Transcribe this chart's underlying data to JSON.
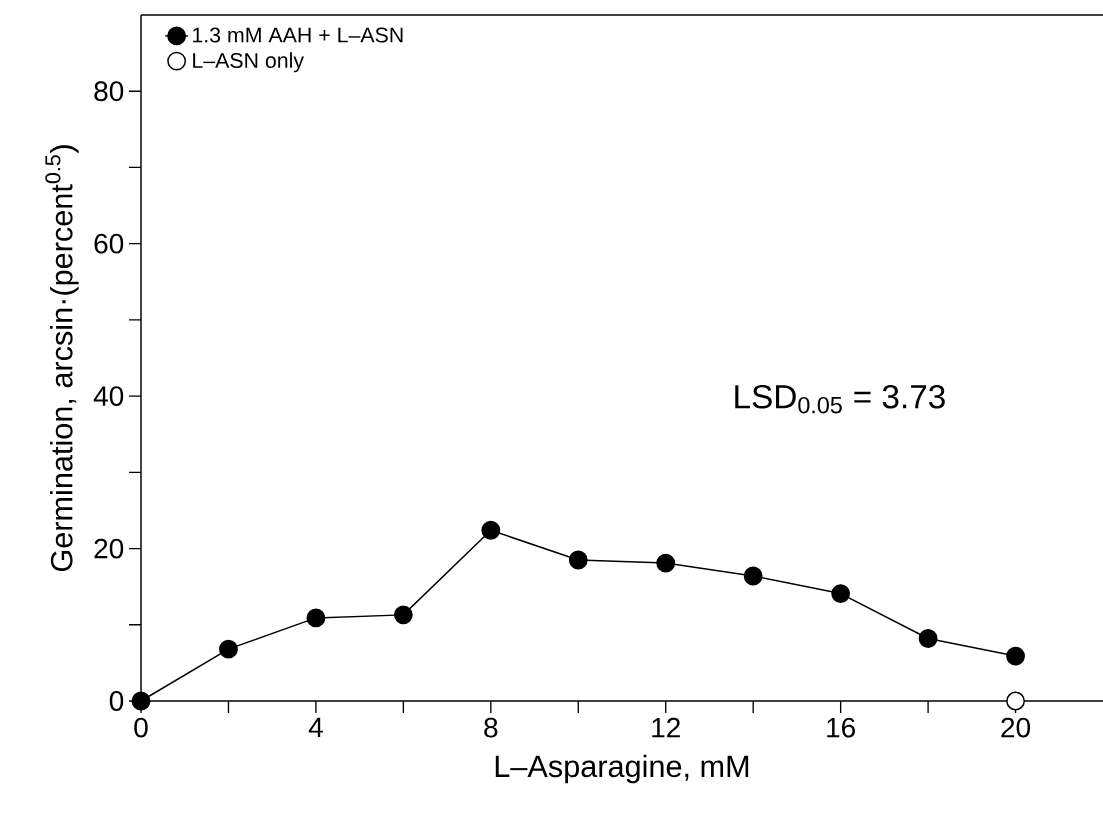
{
  "chart_data": {
    "type": "line",
    "xlabel": "L–Asparagine, mM",
    "ylabel": "Germination, arcsin·(percent$^{0.5}$)",
    "xlim": [
      0,
      22
    ],
    "ylim": [
      0,
      90
    ],
    "xticks": [
      0,
      {
        "value": 2,
        "label": null
      },
      4,
      {
        "value": 6,
        "label": null
      },
      8,
      {
        "value": 10,
        "label": null
      },
      12,
      {
        "value": 14,
        "label": null
      },
      16,
      {
        "value": 18,
        "label": null
      },
      20
    ],
    "yticks": [
      0,
      {
        "value": 10,
        "label": null
      },
      20,
      {
        "value": 30,
        "label": null
      },
      40,
      {
        "value": 50,
        "label": null
      },
      60,
      {
        "value": 70,
        "label": null
      },
      80
    ],
    "legend": "top left",
    "marker": "circle",
    "annotations": [
      "LSD$_{0.05}$ = 3.73"
    ],
    "series": [
      {
        "name": "1.3 mM AAH + L–ASN",
        "color": "#000000",
        "x": [
          0,
          2,
          4,
          6,
          8,
          10,
          12,
          14,
          16,
          18,
          20
        ],
        "values": [
          0,
          6.8,
          10.9,
          11.3,
          22.4,
          18.5,
          18.1,
          16.4,
          14.1,
          8.2,
          5.9
        ]
      },
      {
        "name": "L–ASN only",
        "type": "scatter",
        "color": "#000000",
        "x": [
          20
        ],
        "values": [
          0
        ]
      }
    ]
  }
}
